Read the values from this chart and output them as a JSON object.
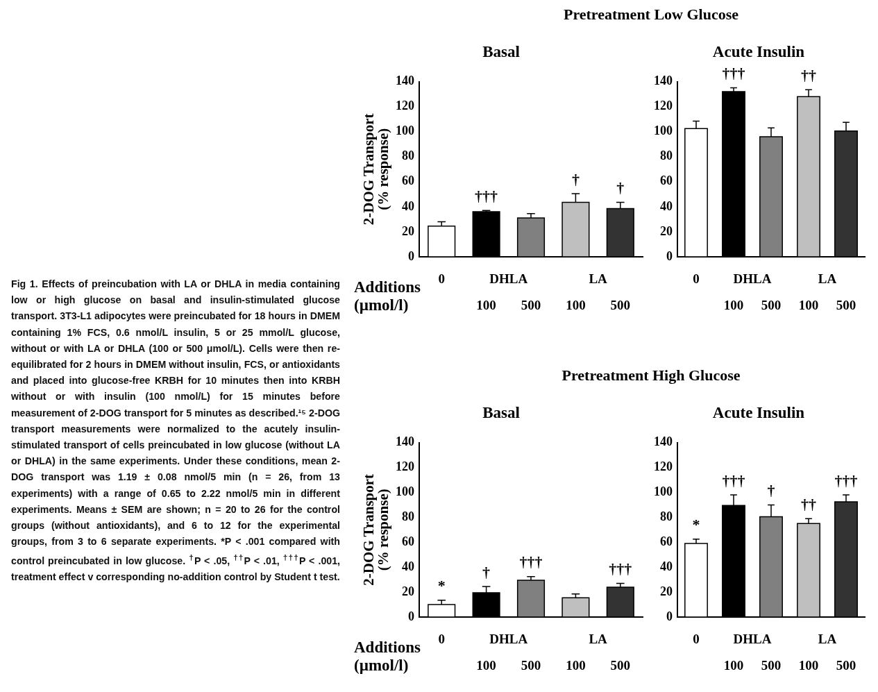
{
  "chart_data": [
    {
      "type": "bar",
      "title": "Pretreatment Low Glucose",
      "subtitle": "Basal",
      "xlabel": "Additions (µmol/l)",
      "ylabel": "2-DOG Transport (% response)",
      "categories": [
        "0",
        "100",
        "500",
        "100",
        "500"
      ],
      "values": [
        24.5,
        36,
        31,
        43.5,
        38.5
      ],
      "errors": [
        3.5,
        1,
        3.5,
        7,
        5
      ],
      "value_labels": [
        null,
        "†††",
        null,
        "†",
        "†"
      ],
      "colors": [
        "#ffffff",
        "#000000",
        "#808080",
        "#bfbfbf",
        "#333333"
      ],
      "ylim": [
        0,
        140
      ],
      "yticks": [
        0,
        20,
        40,
        60,
        80,
        100,
        120,
        140
      ],
      "grid": false,
      "legend": false,
      "annotations": [
        {
          "text": "DHLA"
        },
        {
          "text": "LA"
        },
        "Fig 1.   Effects of preincubation with LA or DHLA in media containing low or high glucose on basal and insulin-stimulated glucose transport. 3T3-L1 adipocytes were preincubated for 18 hours in DMEM containing 1% FCS, 0.6 nmol/L insulin, 5 or 25 mmol/L glucose, without or with LA or DHLA (100 or 500 μmol/L). Cells were then re-equilibrated for 2 hours in DMEM without insulin, FCS, or antioxidants and placed into glucose-free KRBH for 10 minutes then into KRBH without or with insulin (100 nmol/L) for 15 minutes before measurement of 2-DOG transport for 5 minutes as described.¹⁵ 2-DOG transport measurements were normalized to the acutely insulin-stimulated transport of cells preincubated in low glucose (without LA or DHLA) in the same experiments. Under these conditions, mean 2-DOG transport was 1.19 ± 0.08 nmol/5 min (n = 26, from 13 experiments) with a range of 0.65 to 2.22 nmol/5 min in different experiments. Means ± SEM are shown; n = 20 to 26 for the control groups (without antioxidants), and 6 to 12 for the experimental groups, from 3 to 6 separate experiments. *P < .001 compared with control preincubated in low glucose. $^{†}$P < .05, $^{††}$P < .01, $^{†††}$P < .001, treatment effect v corresponding no-addition control by Student t test."
      ]
    },
    {
      "type": "bar",
      "subtitle": "Acute Insulin",
      "categories": [
        "0",
        "100",
        "500",
        "100",
        "500"
      ],
      "values": [
        102.5,
        132,
        96,
        128,
        100.5
      ],
      "errors": [
        6,
        3,
        7,
        5.5,
        7
      ],
      "value_labels": [
        null,
        "†††",
        null,
        "††",
        null
      ],
      "colors": [
        "#ffffff",
        "#000000",
        "#808080",
        "#bfbfbf",
        "#333333"
      ],
      "ylim": [
        0,
        140
      ],
      "yticks": [
        0,
        20,
        40,
        60,
        80,
        100,
        120,
        140
      ],
      "grid": false,
      "legend": false,
      "annotations": [
        {
          "text": "DHLA"
        },
        {
          "text": "LA"
        }
      ]
    },
    {
      "type": "bar",
      "title": "Pretreatment High Glucose",
      "subtitle": "Basal",
      "xlabel": "Additions (µmol/l)",
      "ylabel": "2-DOG Transport (% response)",
      "categories": [
        "0",
        "100",
        "500",
        "100",
        "500"
      ],
      "values": [
        10,
        19.5,
        29.5,
        15.5,
        24
      ],
      "errors": [
        3.5,
        5,
        3,
        3,
        3
      ],
      "value_labels": [
        "*",
        "†",
        "†††",
        null,
        "†††"
      ],
      "colors": [
        "#ffffff",
        "#000000",
        "#808080",
        "#bfbfbf",
        "#333333"
      ],
      "ylim": [
        0,
        140
      ],
      "yticks": [
        0,
        20,
        40,
        60,
        80,
        100,
        120,
        140
      ],
      "grid": false,
      "legend": false,
      "annotations": [
        {
          "text": "DHLA"
        },
        {
          "text": "LA"
        }
      ]
    },
    {
      "type": "bar",
      "subtitle": "Acute Insulin",
      "categories": [
        "0",
        "100",
        "500",
        "100",
        "500"
      ],
      "values": [
        59,
        89.5,
        80.5,
        75,
        92.5
      ],
      "errors": [
        3.5,
        8.5,
        9.5,
        4,
        5.5
      ],
      "value_labels": [
        "*",
        "†††",
        "†",
        "††",
        "†††"
      ],
      "colors": [
        "#ffffff",
        "#000000",
        "#808080",
        "#bfbfbf",
        "#333333"
      ],
      "ylim": [
        0,
        140
      ],
      "yticks": [
        0,
        20,
        40,
        60,
        80,
        100,
        120,
        140
      ],
      "grid": false,
      "legend": false,
      "annotations": [
        {
          "text": "DHLA"
        },
        {
          "text": "LA"
        }
      ]
    }
  ]
}
